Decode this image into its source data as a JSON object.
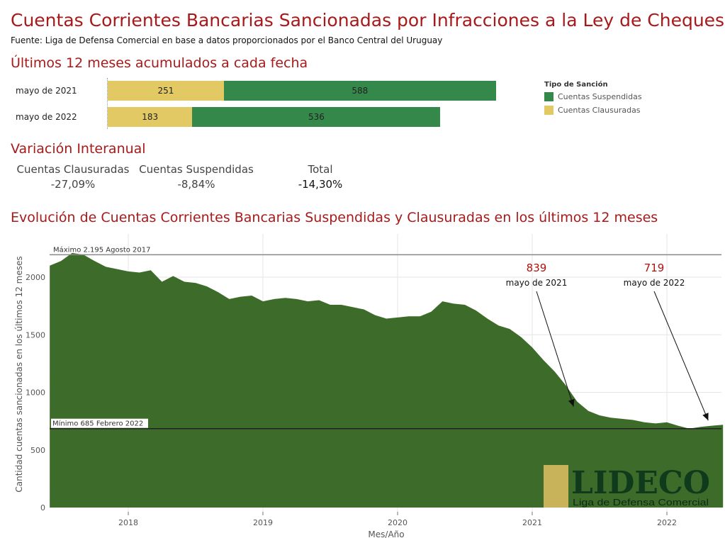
{
  "title": "Cuentas Corrientes Bancarias Sancionadas por Infracciones a la Ley de Cheques",
  "source": "Fuente: Liga de Defensa Comercial en base a datos proporcionados por el Banco Central del Uruguay",
  "section1_title": "Últimos 12 meses acumulados a cada fecha",
  "section2_title": "Variación Interanual",
  "section3_title": "Evolución de Cuentas Corrientes Bancarias Suspendidas y Clausuradas en los últimos 12 meses",
  "colors": {
    "title": "#a81a1a",
    "clausuradas": "#e2c964",
    "suspendidas": "#33884a",
    "area": "#3d6b2a",
    "annot": "#b01010",
    "logo_block": "#c8b35a",
    "logo_text": "#0f3a1c"
  },
  "legend": {
    "title": "Tipo de Sanción",
    "items": [
      {
        "label": "Cuentas Suspendidas",
        "color": "#33884a"
      },
      {
        "label": "Cuentas Clausuradas",
        "color": "#e2c964"
      }
    ]
  },
  "bars": {
    "rows": [
      {
        "label": "mayo de 2021",
        "clausuradas": 251,
        "suspendidas": 588
      },
      {
        "label": "mayo de 2022",
        "clausuradas": 183,
        "suspendidas": 536
      }
    ]
  },
  "variation": {
    "items": [
      {
        "label": "Cuentas Clausuradas",
        "value": "-27,09%"
      },
      {
        "label": "Cuentas Suspendidas",
        "value": "-8,84%"
      },
      {
        "label": "Total",
        "value": "-14,30%"
      }
    ]
  },
  "chart_data": {
    "type": "area",
    "xlabel": "Mes/Año",
    "ylabel": "Cantidad cuentas sancionadas en los últimos 12 meses",
    "ylim": [
      0,
      2280
    ],
    "yticks": [
      0,
      500,
      1000,
      1500,
      2000
    ],
    "xticks": [
      "2018",
      "2019",
      "2020",
      "2021",
      "2022"
    ],
    "x_start": "2017-06",
    "values": [
      2100,
      2140,
      2210,
      2195,
      2140,
      2090,
      2070,
      2050,
      2040,
      2060,
      1960,
      2010,
      1960,
      1950,
      1920,
      1870,
      1810,
      1830,
      1840,
      1790,
      1810,
      1820,
      1810,
      1790,
      1800,
      1760,
      1760,
      1740,
      1720,
      1670,
      1640,
      1650,
      1660,
      1660,
      1700,
      1790,
      1770,
      1760,
      1710,
      1640,
      1580,
      1550,
      1480,
      1390,
      1280,
      1180,
      1060,
      920,
      839,
      800,
      780,
      770,
      760,
      740,
      730,
      740,
      710,
      685,
      700,
      710,
      719
    ],
    "max_line": {
      "value": 2195,
      "label": "Máximo 2.195 Agosto 2017"
    },
    "min_line": {
      "value": 685,
      "label": "Mínimo 685 Febrero 2022"
    },
    "annotations": [
      {
        "value": "839",
        "label": "mayo de 2021",
        "date": "2021-05"
      },
      {
        "value": "719",
        "label": "mayo de 2022",
        "date": "2022-05"
      }
    ]
  },
  "logo": {
    "name": "LIDECO",
    "subtitle": "Liga de Defensa Comercial"
  }
}
